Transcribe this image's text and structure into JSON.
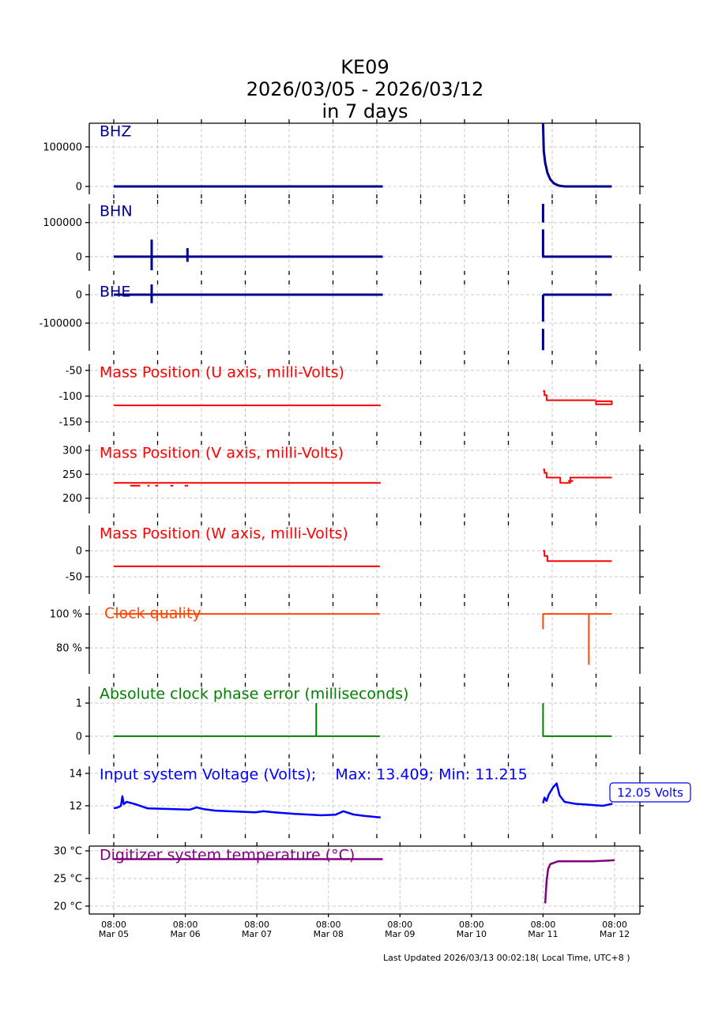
{
  "chart_data": {
    "type": "line",
    "title": [
      "KE09",
      "2026/03/05 - 2026/03/12",
      "in 7 days"
    ],
    "x_unit": "days since Mar 05 08:00 (UTC+8)",
    "xlim": [
      -0.34,
      7.35
    ],
    "x_ticks": [
      {
        "value": 0,
        "time": "08:00",
        "date": "Mar 05"
      },
      {
        "value": 1,
        "time": "08:00",
        "date": "Mar 06"
      },
      {
        "value": 2,
        "time": "08:00",
        "date": "Mar 07"
      },
      {
        "value": 3,
        "time": "08:00",
        "date": "Mar 08"
      },
      {
        "value": 4,
        "time": "08:00",
        "date": "Mar 09"
      },
      {
        "value": 5,
        "time": "08:00",
        "date": "Mar 10"
      },
      {
        "value": 6,
        "time": "08:00",
        "date": "Mar 11"
      },
      {
        "value": 7,
        "time": "08:00",
        "date": "Mar 12"
      }
    ],
    "grid": true,
    "footer": "Last Updated 2026/03/13 00:02:18( Local Time, UTC+8 )",
    "panels": [
      {
        "name": "bhz",
        "label": "BHZ",
        "color": "#00008b",
        "width": 3,
        "ylim": [
          -20000,
          160000
        ],
        "yticks": [
          {
            "v": 100000,
            "t": "100000"
          },
          {
            "v": 0,
            "t": "0"
          }
        ],
        "segments": [
          [
            [
              0,
              0
            ],
            [
              3.76,
              0
            ]
          ],
          [
            [
              6.0,
              160000
            ],
            [
              6.01,
              90000
            ],
            [
              6.03,
              60000
            ],
            [
              6.06,
              35000
            ],
            [
              6.1,
              18000
            ],
            [
              6.15,
              8000
            ],
            [
              6.22,
              2000
            ],
            [
              6.3,
              0
            ],
            [
              6.96,
              0
            ]
          ]
        ]
      },
      {
        "name": "bhn",
        "label": "BHN",
        "color": "#00008b",
        "width": 3,
        "ylim": [
          -42000,
          155000
        ],
        "yticks": [
          {
            "v": 100000,
            "t": "100000"
          },
          {
            "v": 0,
            "t": "0"
          }
        ],
        "segments": [
          [
            [
              0,
              0
            ],
            [
              3.76,
              0
            ]
          ],
          [
            [
              0.53,
              50000
            ],
            [
              0.53,
              -40000
            ]
          ],
          [
            [
              1.03,
              25000
            ],
            [
              1.03,
              -15000
            ]
          ],
          [
            [
              6.0,
              155000
            ],
            [
              6.0,
              100000
            ]
          ],
          [
            [
              6.0,
              80000
            ],
            [
              6.0,
              0
            ],
            [
              6.96,
              0
            ]
          ]
        ]
      },
      {
        "name": "bhe",
        "label": "BHE",
        "color": "#00008b",
        "width": 3,
        "ylim": [
          -197000,
          36000
        ],
        "yticks": [
          {
            "v": 0,
            "t": "0"
          },
          {
            "v": -100000,
            "t": "-100000"
          }
        ],
        "segments": [
          [
            [
              0,
              0
            ],
            [
              3.76,
              0
            ]
          ],
          [
            [
              0.53,
              36000
            ],
            [
              0.53,
              -30000
            ]
          ],
          [
            [
              6.0,
              0
            ],
            [
              6.0,
              -95000
            ]
          ],
          [
            [
              6.0,
              -120000
            ],
            [
              6.0,
              -195000
            ]
          ],
          [
            [
              6.0,
              0
            ],
            [
              6.96,
              0
            ]
          ]
        ]
      },
      {
        "name": "mass-u",
        "label": "Mass Position (U axis, milli-Volts)",
        "color": "#ff0000",
        "width": 2,
        "ylim": [
          -170,
          -38
        ],
        "yticks": [
          {
            "v": -50,
            "t": "-50"
          },
          {
            "v": -100,
            "t": "-100"
          },
          {
            "v": -150,
            "t": "-150"
          }
        ],
        "segments": [
          [
            [
              0,
              -118
            ],
            [
              3.73,
              -118
            ]
          ],
          [
            [
              6.0,
              -90
            ],
            [
              6.02,
              -90
            ],
            [
              6.02,
              -98
            ],
            [
              6.05,
              -98
            ],
            [
              6.05,
              -108
            ],
            [
              6.74,
              -108
            ]
          ],
          [
            [
              6.74,
              -110
            ],
            [
              6.96,
              -110
            ],
            [
              6.96,
              -116
            ],
            [
              6.74,
              -116
            ],
            [
              6.74,
              -110
            ]
          ]
        ]
      },
      {
        "name": "mass-v",
        "label": "Mass Position (V axis, milli-Volts)",
        "color": "#ff0000",
        "width": 2,
        "ylim": [
          168,
          311.5
        ],
        "yticks": [
          {
            "v": 300,
            "t": "300"
          },
          {
            "v": 250,
            "t": "250"
          },
          {
            "v": 200,
            "t": "200"
          }
        ],
        "segments": [
          [
            [
              0,
              232
            ],
            [
              3.73,
              232
            ]
          ],
          [
            [
              0.23,
              226
            ],
            [
              0.37,
              226
            ]
          ],
          [
            [
              0.47,
              226
            ],
            [
              0.5,
              226
            ]
          ],
          [
            [
              0.58,
              226
            ],
            [
              0.62,
              226
            ]
          ],
          [
            [
              0.79,
              226
            ],
            [
              0.83,
              226
            ]
          ],
          [
            [
              0.99,
              226
            ],
            [
              1.04,
              226
            ]
          ],
          [
            [
              6.0,
              260
            ],
            [
              6.02,
              260
            ],
            [
              6.02,
              253
            ],
            [
              6.05,
              253
            ],
            [
              6.05,
              243
            ],
            [
              6.24,
              243
            ],
            [
              6.24,
              232
            ],
            [
              6.38,
              232
            ],
            [
              6.38,
              243
            ],
            [
              6.96,
              243
            ]
          ],
          [
            [
              6.35,
              236
            ],
            [
              6.42,
              236
            ]
          ]
        ]
      },
      {
        "name": "mass-w",
        "label": "Mass Position (W axis, milli-Volts)",
        "color": "#ff0000",
        "width": 2,
        "ylim": [
          -83,
          48.5
        ],
        "yticks": [
          {
            "v": 0,
            "t": "0"
          },
          {
            "v": -50,
            "t": "-50"
          }
        ],
        "segments": [
          [
            [
              0,
              -30
            ],
            [
              3.72,
              -30
            ]
          ],
          [
            [
              6.0,
              0
            ],
            [
              6.02,
              0
            ],
            [
              6.02,
              -10
            ],
            [
              6.06,
              -10
            ],
            [
              6.06,
              -20
            ],
            [
              6.96,
              -20
            ]
          ]
        ]
      },
      {
        "name": "clock-quality",
        "label": "Clock quality",
        "color": "#ff4500",
        "width": 2,
        "ylim": [
          64.7,
          104.7
        ],
        "label_indent": true,
        "yticks": [
          {
            "v": 100,
            "t": "100 %"
          },
          {
            "v": 80,
            "t": "80 %"
          }
        ],
        "segments": [
          [
            [
              0,
              100
            ],
            [
              3.72,
              100
            ]
          ],
          [
            [
              6.0,
              91
            ],
            [
              6.0,
              100
            ],
            [
              6.96,
              100
            ]
          ],
          [
            [
              6.64,
              100
            ],
            [
              6.64,
              70
            ]
          ]
        ]
      },
      {
        "name": "clock-phase-error",
        "label": "Absolute clock phase error (milliseconds)",
        "color": "#008000",
        "width": 2,
        "ylim": [
          -0.55,
          1.5
        ],
        "yticks": [
          {
            "v": 1,
            "t": "1"
          },
          {
            "v": 0,
            "t": "0"
          }
        ],
        "segments": [
          [
            [
              0,
              0
            ],
            [
              3.72,
              0
            ]
          ],
          [
            [
              2.83,
              1
            ],
            [
              2.83,
              0
            ]
          ],
          [
            [
              6.0,
              1
            ],
            [
              6.0,
              0
            ],
            [
              6.96,
              0
            ]
          ]
        ]
      },
      {
        "name": "input-voltage",
        "label": "Input system Voltage (Volts);    Max: 13.409; Min: 11.215",
        "color": "#0000ff",
        "width": 2.5,
        "ylim": [
          10.24,
          14.44
        ],
        "yticks": [
          {
            "v": 14,
            "t": "14"
          },
          {
            "v": 12,
            "t": "12"
          }
        ],
        "current_value_label": "12.05 Volts",
        "segments": [
          [
            [
              0,
              11.84
            ],
            [
              0.06,
              11.9
            ],
            [
              0.1,
              12.0
            ],
            [
              0.12,
              12.59
            ],
            [
              0.14,
              12.1
            ],
            [
              0.18,
              12.24
            ],
            [
              0.3,
              12.1
            ],
            [
              0.47,
              11.84
            ],
            [
              0.8,
              11.8
            ],
            [
              1.06,
              11.76
            ],
            [
              1.16,
              11.9
            ],
            [
              1.25,
              11.8
            ],
            [
              1.42,
              11.7
            ],
            [
              1.98,
              11.6
            ],
            [
              2.09,
              11.66
            ],
            [
              2.24,
              11.6
            ],
            [
              2.53,
              11.5
            ],
            [
              2.9,
              11.41
            ],
            [
              3.1,
              11.45
            ],
            [
              3.21,
              11.66
            ],
            [
              3.35,
              11.46
            ],
            [
              3.5,
              11.38
            ],
            [
              3.73,
              11.28
            ]
          ],
          [
            [
              6.0,
              12.16
            ],
            [
              6.02,
              12.5
            ],
            [
              6.05,
              12.3
            ],
            [
              6.08,
              12.7
            ],
            [
              6.14,
              13.14
            ],
            [
              6.19,
              13.38
            ],
            [
              6.23,
              12.65
            ],
            [
              6.3,
              12.24
            ],
            [
              6.45,
              12.12
            ],
            [
              6.58,
              12.08
            ],
            [
              6.84,
              12.0
            ],
            [
              6.97,
              12.13
            ]
          ]
        ]
      },
      {
        "name": "digitizer-temperature",
        "label": "Digitizer system temperature (°C)",
        "color": "#800080",
        "width": 2.5,
        "ylim": [
          18.57,
          30.86
        ],
        "yticks": [
          {
            "v": 30,
            "t": "30 °C"
          },
          {
            "v": 25,
            "t": "25 °C"
          },
          {
            "v": 20,
            "t": "20 °C"
          }
        ],
        "segments": [
          [
            [
              0,
              28.5
            ],
            [
              3.76,
              28.5
            ]
          ],
          [
            [
              6.03,
              20.5
            ],
            [
              6.05,
              24.5
            ],
            [
              6.07,
              26.7
            ],
            [
              6.1,
              27.6
            ],
            [
              6.21,
              28.1
            ],
            [
              6.69,
              28.1
            ],
            [
              7.0,
              28.3
            ]
          ]
        ]
      }
    ]
  }
}
